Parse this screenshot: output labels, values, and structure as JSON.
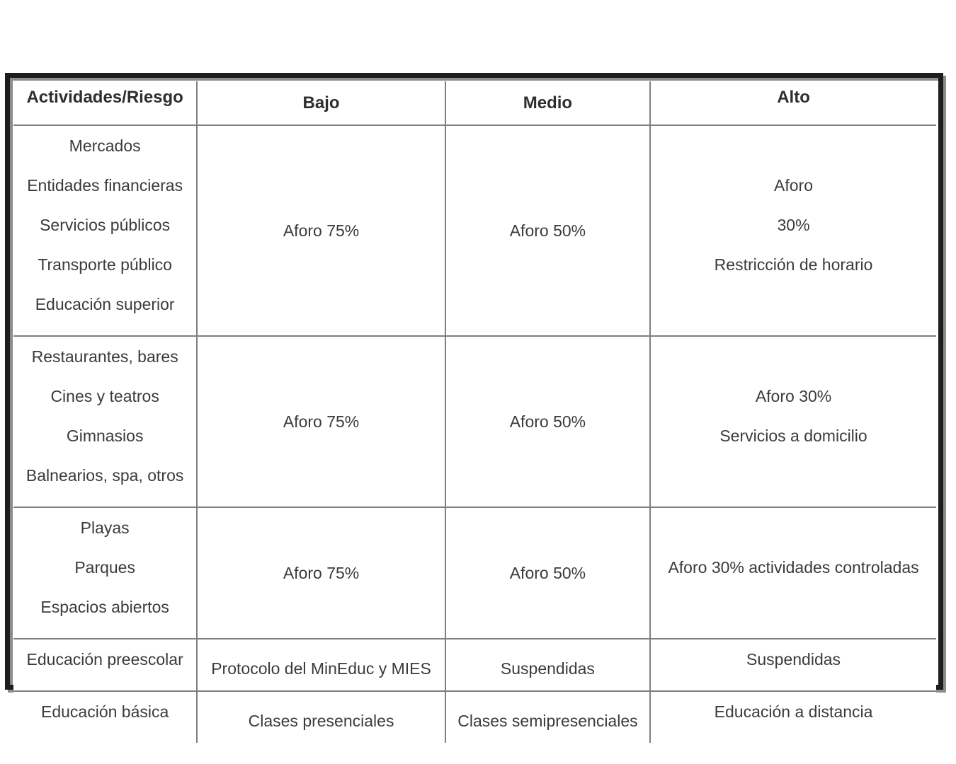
{
  "colors": {
    "frame-border": "#1d1d1d",
    "frame-shadow": "#8c8c8c",
    "grid": "#7f7f7f",
    "text": "#3b3b3b",
    "header-text": "#2e2e2e",
    "bg": "#ffffff"
  },
  "table": {
    "columns": [
      "Actividades/Riesgo",
      "Bajo",
      "Medio",
      "Alto"
    ],
    "rows": [
      {
        "activities": [
          "Mercados",
          "Entidades financieras",
          "Servicios públicos",
          "Transporte público",
          "Educación superior"
        ],
        "bajo": [
          "Aforo 75%"
        ],
        "medio": [
          "Aforo 50%"
        ],
        "alto": [
          "Aforo",
          "30%",
          "Restricción de horario"
        ]
      },
      {
        "activities": [
          "Restaurantes, bares",
          "Cines y teatros",
          "Gimnasios",
          "Balnearios, spa, otros"
        ],
        "bajo": [
          "Aforo 75%"
        ],
        "medio": [
          "Aforo 50%"
        ],
        "alto": [
          "Aforo 30%",
          "Servicios a domicilio"
        ]
      },
      {
        "activities": [
          "Playas",
          "Parques",
          "Espacios abiertos"
        ],
        "bajo": [
          "Aforo 75%"
        ],
        "medio": [
          "Aforo 50%"
        ],
        "alto": [
          "Aforo 30% actividades controladas"
        ]
      },
      {
        "activities": [
          "Educación preescolar"
        ],
        "bajo": [
          "Protocolo del MinEduc y MIES"
        ],
        "medio": [
          "Suspendidas"
        ],
        "alto": [
          "Suspendidas"
        ]
      },
      {
        "activities": [
          "Educación básica"
        ],
        "bajo": [
          "Clases presenciales"
        ],
        "medio": [
          "Clases semipresenciales"
        ],
        "alto": [
          "Educación a distancia"
        ]
      }
    ]
  }
}
